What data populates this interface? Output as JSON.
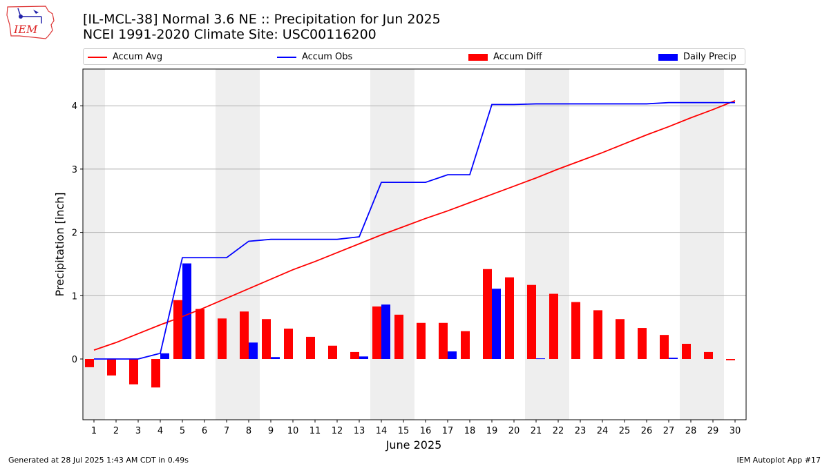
{
  "header": {
    "logo_text": "IEM",
    "title_line1": "[IL-MCL-38] Normal 3.6 NE :: Precipitation for Jun 2025",
    "title_line2": "NCEI 1991-2020 Climate Site: USC00116200"
  },
  "legend": {
    "items": [
      {
        "label": "Accum Avg",
        "type": "line",
        "color": "#ff0000"
      },
      {
        "label": "Accum Obs",
        "type": "line",
        "color": "#0000ff"
      },
      {
        "label": "Accum Diff",
        "type": "bar",
        "color": "#ff0000"
      },
      {
        "label": "Daily Precip",
        "type": "bar",
        "color": "#0000ff"
      }
    ]
  },
  "chart_data": {
    "type": "bar",
    "xlabel": "June 2025",
    "ylabel": "Precipitation [inch]",
    "ylim": [
      -0.96,
      4.58
    ],
    "yticks": [
      0,
      1,
      2,
      3,
      4
    ],
    "grid": "horizontal",
    "legend_position": "top",
    "x": [
      1,
      2,
      3,
      4,
      5,
      6,
      7,
      8,
      9,
      10,
      11,
      12,
      13,
      14,
      15,
      16,
      17,
      18,
      19,
      20,
      21,
      22,
      23,
      24,
      25,
      26,
      27,
      28,
      29,
      30
    ],
    "weekend_shading": [
      [
        1,
        1
      ],
      [
        7,
        8
      ],
      [
        14,
        15
      ],
      [
        21,
        22
      ],
      [
        28,
        29
      ]
    ],
    "series": [
      {
        "name": "Accum Avg",
        "type": "line",
        "color": "#ff0000",
        "values": [
          0.14,
          0.26,
          0.4,
          0.54,
          0.67,
          0.81,
          0.96,
          1.11,
          1.26,
          1.41,
          1.54,
          1.68,
          1.82,
          1.96,
          2.09,
          2.22,
          2.34,
          2.47,
          2.6,
          2.73,
          2.86,
          3.0,
          3.13,
          3.26,
          3.4,
          3.54,
          3.67,
          3.81,
          3.94,
          4.08
        ]
      },
      {
        "name": "Accum Obs",
        "type": "line",
        "color": "#0000ff",
        "values": [
          0,
          0,
          0,
          0.09,
          1.6,
          1.6,
          1.6,
          1.86,
          1.89,
          1.89,
          1.89,
          1.89,
          1.93,
          2.79,
          2.79,
          2.79,
          2.91,
          2.91,
          4.02,
          4.02,
          4.03,
          4.03,
          4.03,
          4.03,
          4.03,
          4.03,
          4.05,
          4.05,
          4.05,
          4.05
        ]
      },
      {
        "name": "Accum Diff",
        "type": "bar",
        "color": "#ff0000",
        "values": [
          -0.13,
          -0.26,
          -0.4,
          -0.45,
          0.93,
          0.79,
          0.64,
          0.75,
          0.63,
          0.48,
          0.35,
          0.21,
          0.11,
          0.83,
          0.7,
          0.57,
          0.57,
          0.44,
          1.42,
          1.29,
          1.17,
          1.03,
          0.9,
          0.77,
          0.63,
          0.49,
          0.38,
          0.24,
          0.11,
          -0.02
        ]
      },
      {
        "name": "Daily Precip",
        "type": "bar",
        "color": "#0000ff",
        "values": [
          0,
          0,
          0,
          0.09,
          1.51,
          0,
          0,
          0.26,
          0.03,
          0,
          0,
          0,
          0.04,
          0.86,
          0,
          0,
          0.12,
          0,
          1.11,
          0,
          0.01,
          0,
          0,
          0,
          0,
          0,
          0.02,
          0,
          0,
          0
        ]
      }
    ]
  },
  "footer": {
    "left": "Generated at 28 Jul 2025 1:43 AM CDT in 0.49s",
    "right": "IEM Autoplot App #17"
  }
}
